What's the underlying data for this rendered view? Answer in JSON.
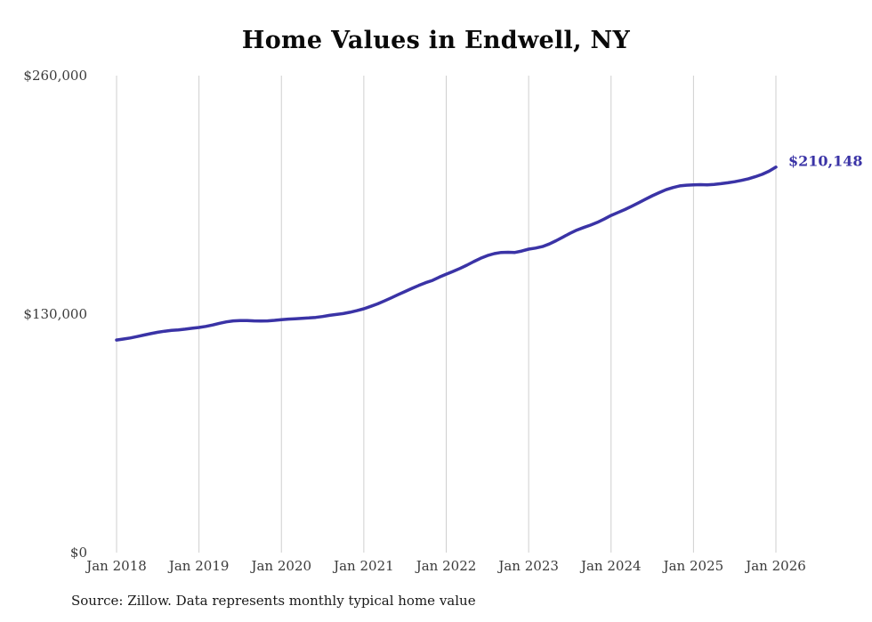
{
  "page": {
    "title": "Home Values in Endwell, NY",
    "source_note": "Source: Zillow. Data represents monthly typical home value",
    "end_label": "$210,148"
  },
  "colors": {
    "line": "#3a33a6",
    "grid": "#cfcfcf",
    "axis_text": "#3a3a3a",
    "end_label": "#3a33a6"
  },
  "chart_data": {
    "type": "line",
    "title": "Home Values in Endwell, NY",
    "xlabel": "",
    "ylabel": "",
    "ylim": [
      0,
      260000
    ],
    "grid": "vertical-only",
    "legend_position": "none",
    "yticks": [
      {
        "value": 0,
        "label": "$0"
      },
      {
        "value": 130000,
        "label": "$130,000"
      },
      {
        "value": 260000,
        "label": "$260,000"
      }
    ],
    "xticks": [
      "Jan 2018",
      "Jan 2019",
      "Jan 2020",
      "Jan 2021",
      "Jan 2022",
      "Jan 2023",
      "Jan 2024",
      "Jan 2025",
      "Jan 2026"
    ],
    "x_start": "2018-01",
    "x_interval": "month",
    "last_point_label": "$210,148",
    "series": [
      {
        "name": "Monthly typical home value",
        "values": [
          115900,
          116400,
          117000,
          117800,
          118600,
          119400,
          120100,
          120700,
          121100,
          121400,
          121800,
          122300,
          122700,
          123300,
          124100,
          125000,
          125800,
          126300,
          126500,
          126500,
          126300,
          126200,
          126300,
          126600,
          127000,
          127300,
          127500,
          127700,
          127900,
          128200,
          128700,
          129300,
          129800,
          130300,
          131000,
          131900,
          132900,
          134200,
          135600,
          137200,
          138900,
          140600,
          142300,
          144000,
          145600,
          147100,
          148400,
          150200,
          151800,
          153300,
          154900,
          156700,
          158600,
          160400,
          161900,
          163000,
          163600,
          163700,
          163600,
          164400,
          165400,
          166000,
          166800,
          168200,
          170000,
          172000,
          174000,
          175800,
          177200,
          178500,
          180000,
          181800,
          183800,
          185400,
          187000,
          188800,
          190700,
          192600,
          194500,
          196200,
          197800,
          199000,
          199900,
          200300,
          200500,
          200600,
          200500,
          200700,
          201100,
          201600,
          202200,
          202900,
          203800,
          204900,
          206200,
          207900,
          210148
        ]
      }
    ]
  }
}
